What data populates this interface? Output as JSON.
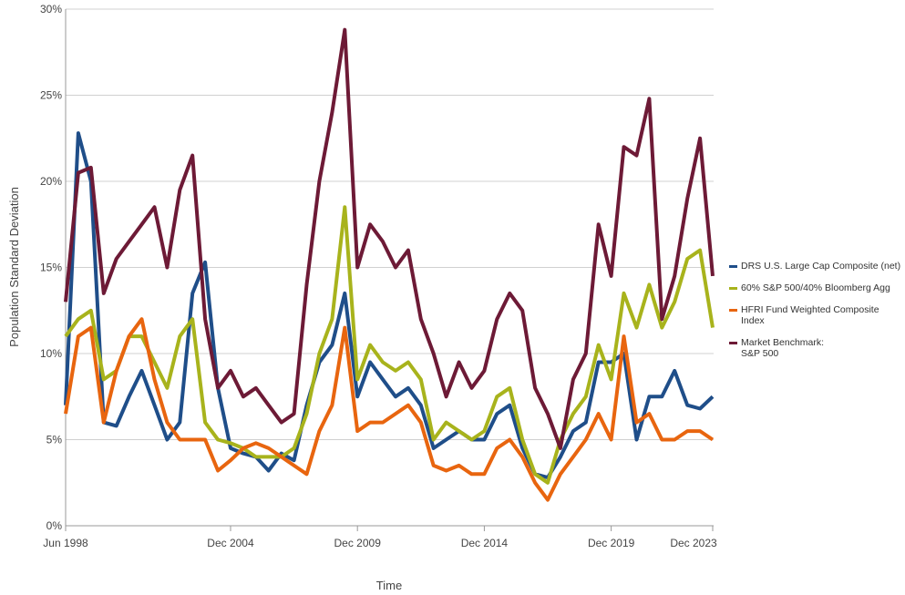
{
  "chart_data": {
    "type": "line",
    "x_label": "Time",
    "y_label": "Population Standard Deviation",
    "x": [
      "1998-06",
      "1998-12",
      "1999-06",
      "1999-12",
      "2000-06",
      "2000-12",
      "2001-06",
      "2001-12",
      "2002-06",
      "2002-12",
      "2003-06",
      "2003-12",
      "2004-06",
      "2004-12",
      "2005-06",
      "2005-12",
      "2006-06",
      "2006-12",
      "2007-06",
      "2007-12",
      "2008-06",
      "2008-12",
      "2009-06",
      "2009-12",
      "2010-06",
      "2010-12",
      "2011-06",
      "2011-12",
      "2012-06",
      "2012-12",
      "2013-06",
      "2013-12",
      "2014-06",
      "2014-12",
      "2015-06",
      "2015-12",
      "2016-06",
      "2016-12",
      "2017-06",
      "2017-12",
      "2018-06",
      "2018-12",
      "2019-06",
      "2019-12",
      "2020-06",
      "2020-12",
      "2021-06",
      "2021-12",
      "2022-06",
      "2022-12",
      "2023-06",
      "2023-12"
    ],
    "series": [
      {
        "name": "DRS U.S. Large Cap Composite (net)",
        "color": "#1f4e89",
        "values": [
          7,
          22.8,
          20,
          6,
          5.8,
          7.5,
          9,
          7,
          5,
          6,
          13.5,
          15.3,
          8,
          4.5,
          4.2,
          4,
          3.2,
          4.2,
          3.8,
          7,
          9.5,
          10.5,
          13.5,
          7.5,
          9.5,
          8.5,
          7.5,
          8,
          7,
          4.5,
          5,
          5.5,
          5,
          5,
          6.5,
          7,
          4.5,
          3,
          2.8,
          4,
          5.5,
          6,
          9.5,
          9.5,
          10,
          5,
          7.5,
          7.5,
          9,
          7,
          6.8,
          7.5
        ]
      },
      {
        "name": "60% S&P 500/40% Bloomberg Agg",
        "color": "#a8b31c",
        "values": [
          11,
          12,
          12.5,
          8.5,
          9,
          11,
          11,
          9.5,
          8,
          11,
          12,
          6,
          5,
          4.8,
          4.5,
          4,
          4,
          4,
          4.5,
          6.5,
          10,
          12,
          18.5,
          8.5,
          10.5,
          9.5,
          9,
          9.5,
          8.5,
          5,
          6,
          5.5,
          5,
          5.5,
          7.5,
          8,
          5,
          3,
          2.5,
          5,
          6.5,
          7.5,
          10.5,
          8.5,
          13.5,
          11.5,
          14,
          11.5,
          13,
          15.5,
          16,
          11.5
        ]
      },
      {
        "name": "HFRI Fund Weighted Composite Index",
        "color": "#e8650f",
        "values": [
          6.5,
          11,
          11.5,
          6,
          9,
          11,
          12,
          8.5,
          6,
          5,
          5,
          5,
          3.2,
          3.8,
          4.5,
          4.8,
          4.5,
          4,
          3.5,
          3,
          5.5,
          7,
          11.5,
          5.5,
          6,
          6,
          6.5,
          7,
          6,
          3.5,
          3.2,
          3.5,
          3,
          3,
          4.5,
          5,
          4,
          2.5,
          1.5,
          3,
          4,
          5,
          6.5,
          5,
          11,
          6,
          6.5,
          5,
          5,
          5.5,
          5.5,
          5
        ]
      },
      {
        "name": "Market Benchmark:\nS&P 500",
        "color": "#6d1a36",
        "values": [
          13,
          20.5,
          20.8,
          13.5,
          15.5,
          16.5,
          17.5,
          18.5,
          15,
          19.5,
          21.5,
          12,
          8,
          9,
          7.5,
          8,
          7,
          6,
          6.5,
          14,
          20,
          24,
          28.8,
          15,
          17.5,
          16.5,
          15,
          16,
          12,
          10,
          7.5,
          9.5,
          8,
          9,
          12,
          13.5,
          12.5,
          8,
          6.5,
          4.5,
          8.5,
          10,
          17.5,
          14.5,
          22,
          21.5,
          24.8,
          12,
          14.5,
          19,
          22.5,
          14.5
        ]
      }
    ],
    "xlim": [
      "1998-06",
      "2023-12"
    ],
    "xticks": [
      {
        "value": "1998-06",
        "label": "Jun 1998"
      },
      {
        "value": "2004-12",
        "label": "Dec 2004"
      },
      {
        "value": "2009-12",
        "label": "Dec 2009"
      },
      {
        "value": "2014-12",
        "label": "Dec 2014"
      },
      {
        "value": "2019-12",
        "label": "Dec 2019"
      },
      {
        "value": "2023-12",
        "label": "Dec 2023"
      }
    ],
    "ylim": [
      0,
      30
    ],
    "yticks": [
      {
        "value": 0,
        "label": "0%"
      },
      {
        "value": 5,
        "label": "5%"
      },
      {
        "value": 10,
        "label": "10%"
      },
      {
        "value": 15,
        "label": "15%"
      },
      {
        "value": 20,
        "label": "20%"
      },
      {
        "value": 25,
        "label": "25%"
      },
      {
        "value": 30,
        "label": "30%"
      }
    ],
    "grid": true
  }
}
